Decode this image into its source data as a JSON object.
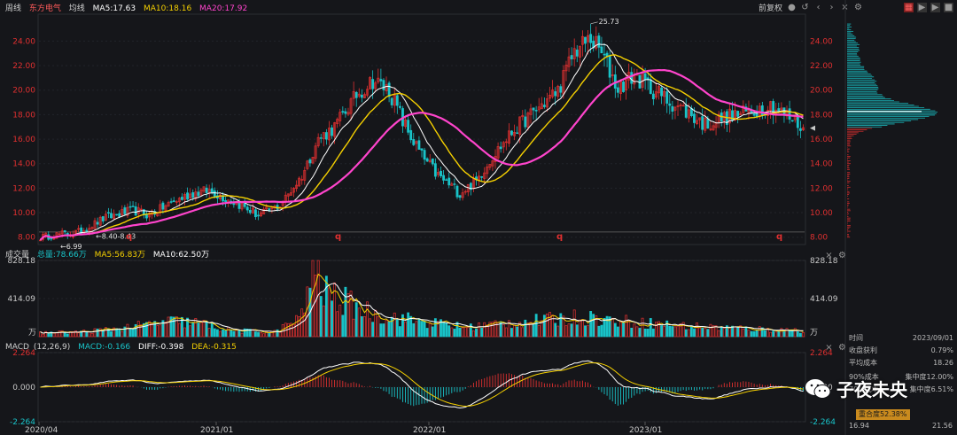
{
  "header": {
    "period": "周线",
    "stock": "东方电气",
    "ma_label": "均线",
    "ma5": "MA5:17.63",
    "ma10": "MA10:18.16",
    "ma20": "MA20:17.92",
    "adjust": "前复权",
    "colors": {
      "ma5": "#ffffff",
      "ma10": "#f5d000",
      "ma20": "#ff44cc",
      "up": "#e03030",
      "down": "#19c3c8"
    }
  },
  "vol_header": {
    "title": "成交量",
    "total": "总量:78.66万",
    "ma5": "MA5:56.83万",
    "ma10": "MA10:62.50万"
  },
  "macd_header": {
    "title": "MACD",
    "params": "(12,26,9)",
    "macd": "MACD:-0.166",
    "diff": "DIFF:-0.398",
    "dea": "DEA:-0.315"
  },
  "side_panel": {
    "rows": [
      {
        "label": "时间",
        "value": "2023/09/01"
      },
      {
        "label": "收盘获利",
        "value": "0.79%"
      },
      {
        "label": "平均成本",
        "value": "18.26"
      },
      {
        "label": "90%成本",
        "value": "集中度12.00%"
      },
      {
        "label": "70%成本",
        "value": "集中度6.51%"
      }
    ],
    "concentration": "重合度52.38%",
    "range_low": "16.94",
    "range_high": "21.56"
  },
  "watermark": "子夜未央",
  "chart_data": [
    {
      "type": "candlestick",
      "name": "price",
      "ylim": [
        7.4,
        26.2
      ],
      "y_ticks": [
        "24.00",
        "22.00",
        "20.00",
        "18.00",
        "16.00",
        "14.00",
        "12.00",
        "10.00",
        "8.00"
      ],
      "annotations": {
        "high": "25.73",
        "low": "6.99",
        "range": "8.40-8.43"
      },
      "markers": [
        "q",
        "q",
        "q",
        "q"
      ],
      "close_anchors": [
        [
          0,
          8.0
        ],
        [
          6,
          8.2
        ],
        [
          14,
          8.4
        ],
        [
          24,
          9.6
        ],
        [
          34,
          10.2
        ],
        [
          40,
          9.8
        ],
        [
          48,
          10.8
        ],
        [
          56,
          11.6
        ],
        [
          62,
          11.8
        ],
        [
          72,
          10.8
        ],
        [
          80,
          9.8
        ],
        [
          88,
          10.6
        ],
        [
          96,
          13.0
        ],
        [
          102,
          16.0
        ],
        [
          108,
          17.0
        ],
        [
          116,
          19.6
        ],
        [
          122,
          20.8
        ],
        [
          128,
          20.0
        ],
        [
          134,
          17.0
        ],
        [
          140,
          14.6
        ],
        [
          146,
          13.0
        ],
        [
          154,
          11.6
        ],
        [
          160,
          12.6
        ],
        [
          166,
          14.6
        ],
        [
          174,
          16.8
        ],
        [
          182,
          18.4
        ],
        [
          190,
          20.0
        ],
        [
          196,
          23.2
        ],
        [
          202,
          24.2
        ],
        [
          206,
          23.0
        ],
        [
          212,
          20.2
        ],
        [
          218,
          21.2
        ],
        [
          224,
          20.2
        ],
        [
          230,
          19.2
        ],
        [
          236,
          18.4
        ],
        [
          244,
          17.2
        ],
        [
          252,
          17.8
        ],
        [
          260,
          18.2
        ],
        [
          268,
          18.8
        ],
        [
          276,
          17.6
        ],
        [
          280,
          16.9
        ]
      ],
      "ma_periods": [
        5,
        10,
        20
      ]
    },
    {
      "type": "bar",
      "name": "volume",
      "ylim": [
        0,
        828.18
      ],
      "y_ticks": [
        "828.18",
        "414.09"
      ],
      "unit": "万",
      "peak_volumes": [
        [
          0,
          50
        ],
        [
          14,
          60
        ],
        [
          24,
          90
        ],
        [
          36,
          140
        ],
        [
          48,
          200
        ],
        [
          58,
          180
        ],
        [
          70,
          80
        ],
        [
          86,
          60
        ],
        [
          96,
          260
        ],
        [
          100,
          828
        ],
        [
          104,
          600
        ],
        [
          112,
          450
        ],
        [
          122,
          300
        ],
        [
          132,
          240
        ],
        [
          144,
          180
        ],
        [
          156,
          120
        ],
        [
          168,
          170
        ],
        [
          180,
          200
        ],
        [
          190,
          230
        ],
        [
          200,
          260
        ],
        [
          210,
          210
        ],
        [
          222,
          180
        ],
        [
          236,
          140
        ],
        [
          250,
          120
        ],
        [
          262,
          100
        ],
        [
          280,
          80
        ]
      ]
    },
    {
      "type": "bar",
      "name": "macd",
      "ylim": [
        -2.264,
        2.264
      ],
      "y_ticks": [
        "2.264",
        "0.000",
        "-2.264"
      ],
      "x_ticks": [
        "2020/04",
        "2021/01",
        "2022/01",
        "2023/01"
      ]
    }
  ]
}
